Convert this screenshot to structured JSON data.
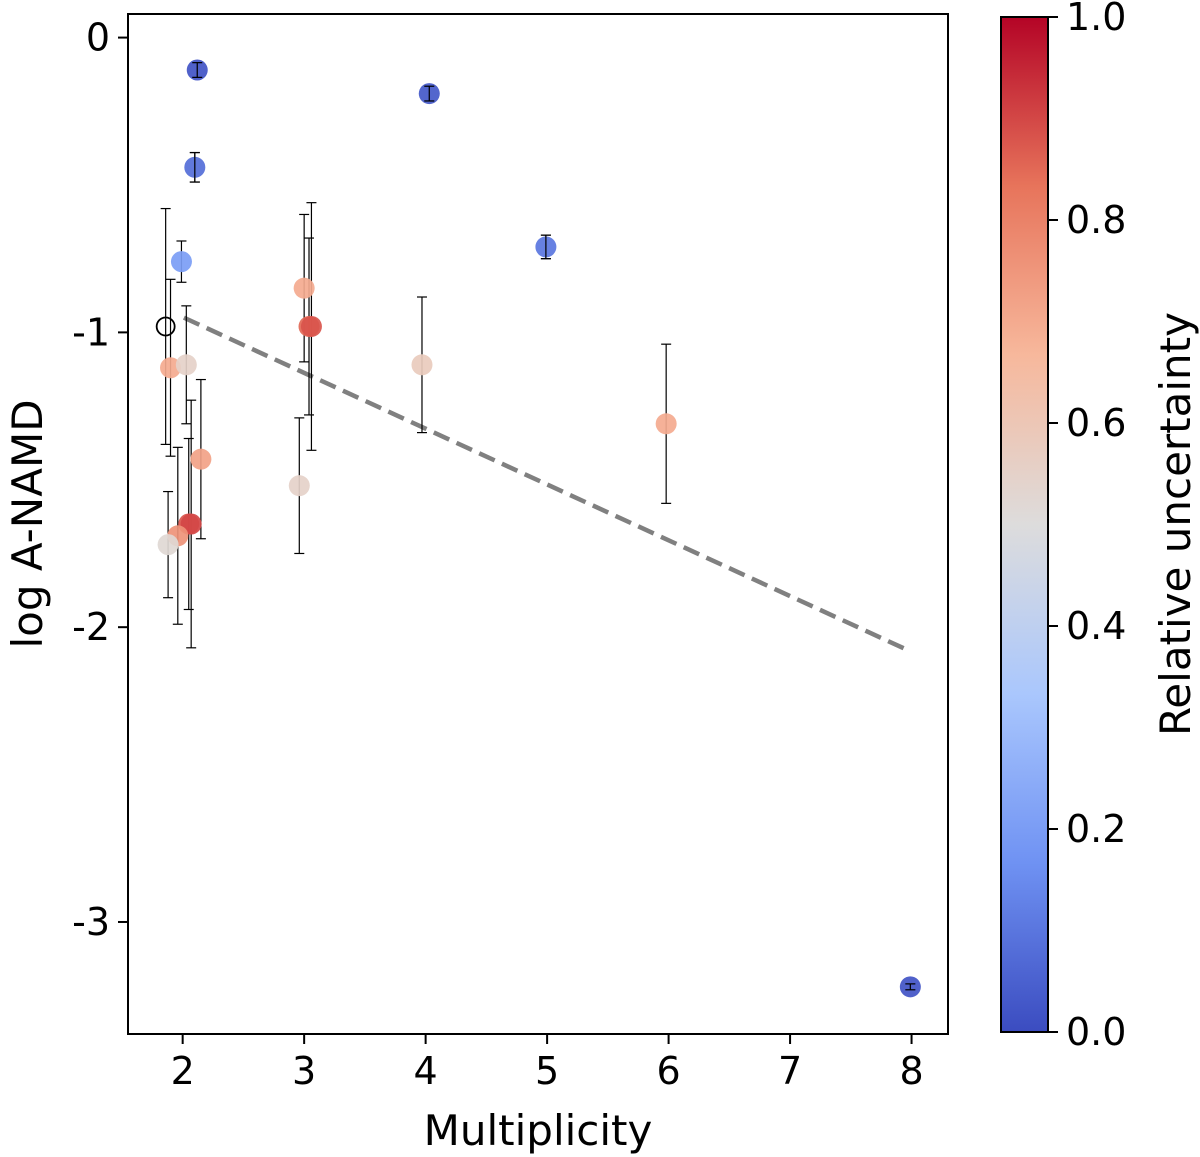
{
  "chart_data": {
    "type": "scatter",
    "title": "",
    "xlabel": "Multiplicity",
    "ylabel": "log A-NAMD",
    "xlim": [
      1.55,
      8.3
    ],
    "ylim": [
      -3.38,
      0.08
    ],
    "xticks": [
      2,
      3,
      4,
      5,
      6,
      7,
      8
    ],
    "xtick_labels": [
      "2",
      "3",
      "4",
      "5",
      "6",
      "7",
      "8"
    ],
    "yticks": [
      0,
      -1,
      -2,
      -3
    ],
    "ytick_labels": [
      "0",
      "-1",
      "-2",
      "-3"
    ],
    "colorbar": {
      "label": "Relative uncertainty",
      "range": [
        0.0,
        1.0
      ],
      "ticks": [
        0.0,
        0.2,
        0.4,
        0.6,
        0.8,
        1.0
      ],
      "tick_labels": [
        "0.0",
        "0.2",
        "0.4",
        "0.6",
        "0.8",
        "1.0"
      ],
      "colormap": "coolwarm",
      "stops": [
        "#3b4cc0",
        "#6f92f3",
        "#aac7fd",
        "#dddcdc",
        "#f7b89c",
        "#e7745b",
        "#b40426"
      ]
    },
    "points": [
      {
        "x": 2.12,
        "y": -0.11,
        "yerr": 0.025,
        "u": 0.02
      },
      {
        "x": 4.03,
        "y": -0.19,
        "yerr": 0.025,
        "u": 0.03
      },
      {
        "x": 2.1,
        "y": -0.44,
        "yerr": 0.05,
        "u": 0.08
      },
      {
        "x": 1.99,
        "y": -0.76,
        "yerr": 0.07,
        "u": 0.2
      },
      {
        "x": 4.99,
        "y": -0.71,
        "yerr": 0.04,
        "u": 0.1
      },
      {
        "x": 3.0,
        "y": -0.85,
        "yerr": 0.25,
        "u": 0.7
      },
      {
        "x": 3.04,
        "y": -0.98,
        "yerr": 0.3,
        "u": 0.85
      },
      {
        "x": 3.06,
        "y": -0.98,
        "yerr": 0.42,
        "u": 0.88
      },
      {
        "x": 1.9,
        "y": -1.12,
        "yerr": 0.3,
        "u": 0.7
      },
      {
        "x": 2.03,
        "y": -1.11,
        "yerr": 0.2,
        "u": 0.55
      },
      {
        "x": 3.97,
        "y": -1.11,
        "yerr": 0.23,
        "u": 0.58
      },
      {
        "x": 5.98,
        "y": -1.31,
        "yerr": 0.27,
        "u": 0.7
      },
      {
        "x": 2.15,
        "y": -1.43,
        "yerr": 0.27,
        "u": 0.72
      },
      {
        "x": 2.96,
        "y": -1.52,
        "yerr": 0.23,
        "u": 0.55
      },
      {
        "x": 2.05,
        "y": -1.65,
        "yerr": 0.29,
        "u": 0.88
      },
      {
        "x": 2.07,
        "y": -1.65,
        "yerr": 0.42,
        "u": 0.9
      },
      {
        "x": 1.96,
        "y": -1.69,
        "yerr": 0.3,
        "u": 0.76
      },
      {
        "x": 1.88,
        "y": -1.72,
        "yerr": 0.18,
        "u": 0.52
      },
      {
        "x": 7.99,
        "y": -3.22,
        "yerr": 0.01,
        "u": 0.02
      }
    ],
    "open_points": [
      {
        "x": 1.86,
        "y": -0.98,
        "yerr": 0.4
      }
    ],
    "trend_line": {
      "style": "dashed",
      "color": "#808080",
      "points": [
        [
          2.01,
          -0.95
        ],
        [
          7.98,
          -2.08
        ]
      ]
    }
  }
}
